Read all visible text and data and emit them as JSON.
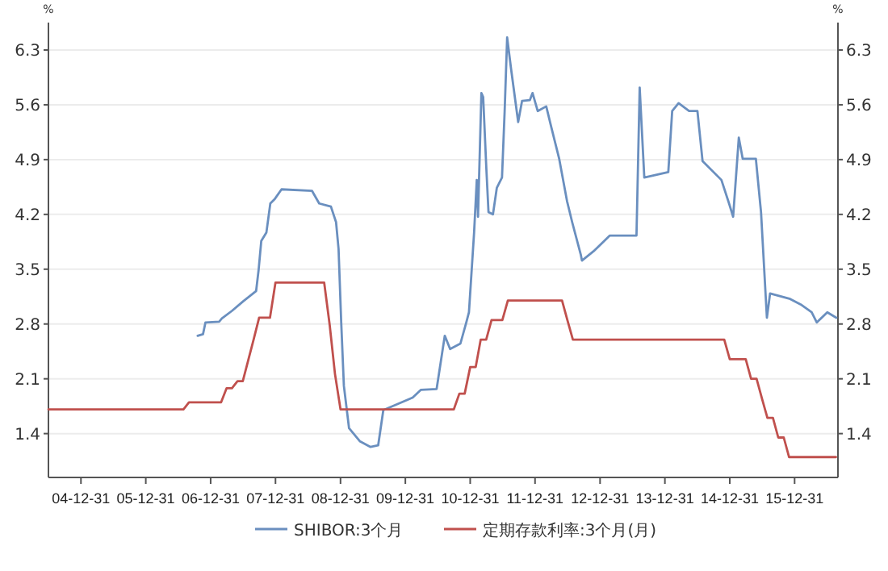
{
  "chart_data": {
    "type": "line",
    "ylabel": "%",
    "y2label": "%",
    "xlim": [
      "2004-07-01",
      "2016-08-31"
    ],
    "xticks": [
      {
        "value": "2004-12-31",
        "label": "04-12-31"
      },
      {
        "value": "2005-12-31",
        "label": "05-12-31"
      },
      {
        "value": "2006-12-31",
        "label": "06-12-31"
      },
      {
        "value": "2007-12-31",
        "label": "07-12-31"
      },
      {
        "value": "2008-12-31",
        "label": "08-12-31"
      },
      {
        "value": "2009-12-31",
        "label": "09-12-31"
      },
      {
        "value": "2010-12-31",
        "label": "10-12-31"
      },
      {
        "value": "2011-12-31",
        "label": "11-12-31"
      },
      {
        "value": "2012-12-31",
        "label": "12-12-31"
      },
      {
        "value": "2013-12-31",
        "label": "13-12-31"
      },
      {
        "value": "2014-12-31",
        "label": "14-12-31"
      },
      {
        "value": "2015-12-31",
        "label": "15-12-31"
      }
    ],
    "ylim": [
      0.84,
      6.65
    ],
    "yticks": [
      1.4,
      2.1,
      2.8,
      3.5,
      4.2,
      4.9,
      5.6,
      6.3
    ],
    "y2lim": [
      0.84,
      6.65
    ],
    "y2ticks": [
      1.4,
      2.1,
      2.8,
      3.5,
      4.2,
      4.9,
      5.6,
      6.3
    ],
    "grid": "y",
    "legend": "bottom",
    "series": [
      {
        "name": "SHIBOR:3个月",
        "color": "#6a8fbf",
        "x": [
          "2006-10-19",
          "2006-11-18",
          "2006-12-02",
          "2007-02-17",
          "2007-03-04",
          "2007-05-01",
          "2007-07-02",
          "2007-09-13",
          "2007-09-27",
          "2007-10-12",
          "2007-11-10",
          "2007-12-02",
          "2007-12-28",
          "2008-02-03",
          "2008-07-24",
          "2008-09-02",
          "2008-11-07",
          "2008-12-06",
          "2008-12-20",
          "2009-01-04",
          "2009-01-19",
          "2009-02-17",
          "2009-04-20",
          "2009-06-18",
          "2009-07-31",
          "2009-08-29",
          "2010-02-10",
          "2010-03-29",
          "2010-06-25",
          "2010-08-10",
          "2010-09-09",
          "2010-11-06",
          "2010-12-09",
          "2010-12-24",
          "2011-01-22",
          "2011-02-06",
          "2011-02-13",
          "2011-03-04",
          "2011-03-14",
          "2011-04-01",
          "2011-04-13",
          "2011-05-08",
          "2011-05-30",
          "2011-06-28",
          "2011-07-13",
          "2011-07-27",
          "2011-08-18",
          "2011-09-27",
          "2011-10-19",
          "2011-12-02",
          "2011-12-17",
          "2012-01-15",
          "2012-03-03",
          "2012-04-01",
          "2012-05-15",
          "2012-06-28",
          "2012-07-27",
          "2012-09-13",
          "2012-09-20",
          "2012-11-25",
          "2013-02-24",
          "2013-07-24",
          "2013-08-11",
          "2013-09-06",
          "2014-01-19",
          "2014-02-10",
          "2014-03-18",
          "2014-05-16",
          "2014-07-02",
          "2014-07-31",
          "2014-11-14",
          "2014-12-27",
          "2015-01-19",
          "2015-02-20",
          "2015-03-14",
          "2015-05-27",
          "2015-06-25",
          "2015-07-28",
          "2015-08-15",
          "2015-12-06",
          "2016-02-03",
          "2016-04-05",
          "2016-05-04",
          "2016-07-02",
          "2016-08-22"
        ],
        "values": [
          2.65,
          2.67,
          2.82,
          2.83,
          2.87,
          2.97,
          3.09,
          3.22,
          3.49,
          3.86,
          3.97,
          4.34,
          4.4,
          4.52,
          4.5,
          4.34,
          4.3,
          4.1,
          3.76,
          2.82,
          2.01,
          1.47,
          1.3,
          1.23,
          1.25,
          1.7,
          1.86,
          1.96,
          1.97,
          2.65,
          2.48,
          2.55,
          2.82,
          2.95,
          3.97,
          4.64,
          4.17,
          5.75,
          5.7,
          4.78,
          4.23,
          4.2,
          4.54,
          4.67,
          5.52,
          6.46,
          6.06,
          5.38,
          5.65,
          5.66,
          5.75,
          5.52,
          5.58,
          5.31,
          4.91,
          4.37,
          4.1,
          3.69,
          3.61,
          3.73,
          3.93,
          3.93,
          5.82,
          4.67,
          4.74,
          5.52,
          5.62,
          5.52,
          5.52,
          4.88,
          4.64,
          4.34,
          4.17,
          5.18,
          4.91,
          4.91,
          4.23,
          2.88,
          3.19,
          3.12,
          3.05,
          2.95,
          2.82,
          2.95,
          2.88
        ]
      },
      {
        "name": "定期存款利率:3个月(月)",
        "color": "#c0504d",
        "x": [
          "2004-07-01",
          "2006-07-31",
          "2006-08-31",
          "2007-02-28",
          "2007-03-31",
          "2007-04-30",
          "2007-05-31",
          "2007-06-30",
          "2007-07-31",
          "2007-08-31",
          "2007-09-30",
          "2007-11-30",
          "2007-12-31",
          "2008-09-30",
          "2008-10-31",
          "2008-11-30",
          "2008-12-31",
          "2010-09-30",
          "2010-10-31",
          "2010-11-30",
          "2010-12-31",
          "2011-01-31",
          "2011-02-28",
          "2011-03-31",
          "2011-04-30",
          "2011-06-30",
          "2011-07-31",
          "2012-05-31",
          "2012-06-30",
          "2012-07-31",
          "2014-11-30",
          "2014-12-31",
          "2015-03-31",
          "2015-04-30",
          "2015-05-31",
          "2015-06-30",
          "2015-07-31",
          "2015-08-31",
          "2015-09-30",
          "2015-10-31",
          "2015-11-30",
          "2016-08-20"
        ],
        "values": [
          1.71,
          1.71,
          1.8,
          1.8,
          1.98,
          1.98,
          2.07,
          2.07,
          2.34,
          2.61,
          2.88,
          2.88,
          3.33,
          3.33,
          2.79,
          2.16,
          1.71,
          1.71,
          1.91,
          1.91,
          2.25,
          2.25,
          2.6,
          2.6,
          2.85,
          2.85,
          3.1,
          3.1,
          2.85,
          2.6,
          2.6,
          2.35,
          2.35,
          2.1,
          2.1,
          1.85,
          1.6,
          1.6,
          1.35,
          1.35,
          1.1,
          1.1
        ]
      }
    ]
  }
}
